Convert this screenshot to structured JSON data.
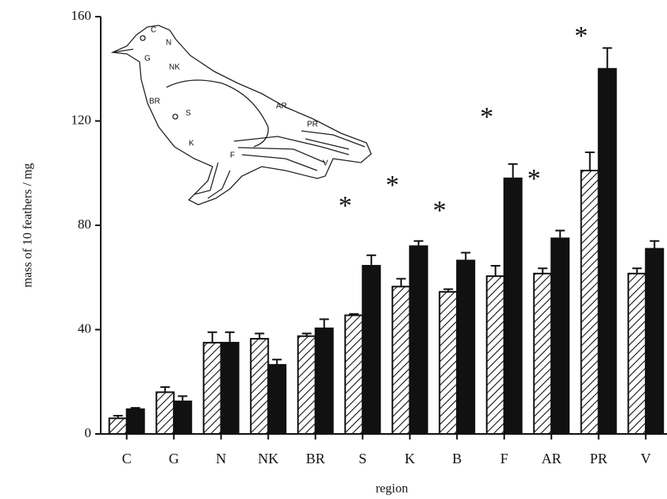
{
  "chart_data": {
    "type": "bar",
    "x_label": "region",
    "y_label": "mass of 10 feathers / mg",
    "categories": [
      "C",
      "G",
      "N",
      "NK",
      "BR",
      "S",
      "K",
      "B",
      "F",
      "AR",
      "PR",
      "V"
    ],
    "series": [
      {
        "color": "#111111",
        "hatch": true,
        "values": [
          6,
          16,
          35,
          36.5,
          37.5,
          45.5,
          56.5,
          54.5,
          60.5,
          61.5,
          101,
          61.5
        ],
        "errors": [
          1,
          2,
          4,
          2,
          1,
          0.5,
          3,
          1,
          4,
          2,
          7,
          2
        ]
      },
      {
        "color": "#111111",
        "hatch": false,
        "values": [
          9.5,
          12.5,
          35,
          26.5,
          40.5,
          64.5,
          72,
          66.5,
          98,
          75,
          140,
          71
        ],
        "errors": [
          0.5,
          2,
          4,
          2,
          3.5,
          4,
          2,
          3,
          5.5,
          3,
          8,
          3
        ]
      }
    ],
    "significance": [
      null,
      null,
      null,
      null,
      null,
      "*",
      "*",
      "*",
      "*",
      "*",
      "*",
      null
    ],
    "ylim": [
      0,
      160
    ],
    "yticks": [
      0,
      40,
      80,
      120,
      160
    ],
    "inset_labels": [
      "C",
      "N",
      "G",
      "NK",
      "BR",
      "S",
      "AR",
      "PR",
      "K",
      "F",
      "V"
    ]
  }
}
